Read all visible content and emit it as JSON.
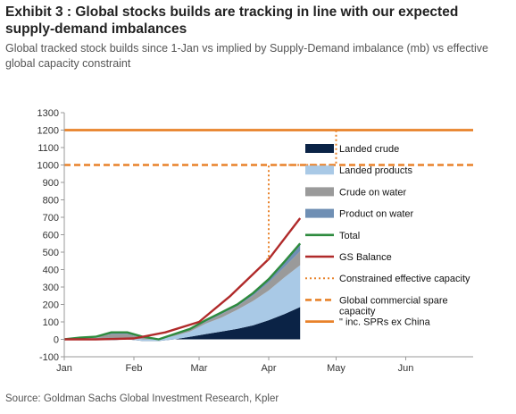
{
  "header": {
    "title": "Exhibit 3 : Global stocks builds are tracking in line with our expected supply-demand imbalances",
    "subtitle": "Global tracked stock builds since 1-Jan vs implied by Supply-Demand imbalance (mb) vs effective global capacity constraint"
  },
  "footer": {
    "source": "Source: Goldman Sachs Global Investment Research, Kpler"
  },
  "chart_data": {
    "type": "area",
    "title": "",
    "xlabel": "",
    "ylabel": "",
    "x_range": [
      "2020-01-01",
      "2020-07-01"
    ],
    "x_ticks": [
      {
        "date": "2020-01-01",
        "label": "Jan"
      },
      {
        "date": "2020-02-01",
        "label": "Feb"
      },
      {
        "date": "2020-03-01",
        "label": "Mar"
      },
      {
        "date": "2020-04-01",
        "label": "Apr"
      },
      {
        "date": "2020-05-01",
        "label": "May"
      },
      {
        "date": "2020-06-01",
        "label": "Jun"
      }
    ],
    "ylim": [
      -100,
      1300
    ],
    "y_ticks": [
      -100,
      0,
      100,
      200,
      300,
      400,
      500,
      600,
      700,
      800,
      900,
      1000,
      1100,
      1200,
      1300
    ],
    "grid": false,
    "legend_position": "right",
    "dates": [
      "2020-01-01",
      "2020-01-08",
      "2020-01-15",
      "2020-01-22",
      "2020-01-29",
      "2020-02-05",
      "2020-02-12",
      "2020-02-19",
      "2020-02-26",
      "2020-03-04",
      "2020-03-11",
      "2020-03-18",
      "2020-03-25",
      "2020-04-01",
      "2020-04-08",
      "2020-04-15"
    ],
    "series": [
      {
        "name": "Landed crude",
        "kind": "stacked-area",
        "color": "#0b2346",
        "values": [
          0,
          5,
          0,
          -5,
          0,
          -10,
          -10,
          0,
          15,
          30,
          45,
          60,
          80,
          110,
          145,
          185
        ]
      },
      {
        "name": "Landed products",
        "kind": "stacked-area",
        "color": "#a9c9e6",
        "values": [
          0,
          5,
          10,
          10,
          10,
          10,
          10,
          20,
          30,
          60,
          80,
          110,
          140,
          170,
          210,
          240
        ]
      },
      {
        "name": "Crude on water",
        "kind": "stacked-area",
        "color": "#9a9a9a",
        "values": [
          0,
          0,
          5,
          25,
          20,
          10,
          0,
          5,
          10,
          10,
          20,
          20,
          30,
          45,
          60,
          80
        ]
      },
      {
        "name": "Product on water",
        "kind": "stacked-area",
        "color": "#6f8fb4",
        "values": [
          0,
          0,
          0,
          10,
          10,
          5,
          0,
          5,
          5,
          10,
          10,
          10,
          15,
          20,
          30,
          45
        ]
      },
      {
        "name": "Total",
        "kind": "line",
        "color": "#2e8b3e",
        "values": [
          0,
          10,
          15,
          40,
          40,
          15,
          0,
          30,
          60,
          110,
          155,
          200,
          265,
          345,
          445,
          550
        ]
      },
      {
        "name": "GS Balance",
        "kind": "line",
        "color": "#b02a2a",
        "x": [
          "2020-01-01",
          "2020-01-15",
          "2020-02-01",
          "2020-02-15",
          "2020-03-01",
          "2020-03-15",
          "2020-04-01",
          "2020-04-15"
        ],
        "values": [
          0,
          0,
          5,
          40,
          100,
          250,
          460,
          695
        ]
      },
      {
        "name": "Constrained effective capacity",
        "kind": "step-dotted",
        "color": "#e8822a",
        "x": [
          "2020-03-31",
          "2020-04-01",
          "2020-04-01",
          "2020-05-01",
          "2020-05-01"
        ],
        "values": [
          460,
          460,
          1000,
          1000,
          1200
        ]
      },
      {
        "name": "Global commercial spare capacity",
        "kind": "hline-dashed",
        "color": "#e8822a",
        "value": 1000
      },
      {
        "name": "inc. SPRs ex China",
        "kind": "hline-solid",
        "color": "#e8822a",
        "value": 1200
      }
    ]
  }
}
